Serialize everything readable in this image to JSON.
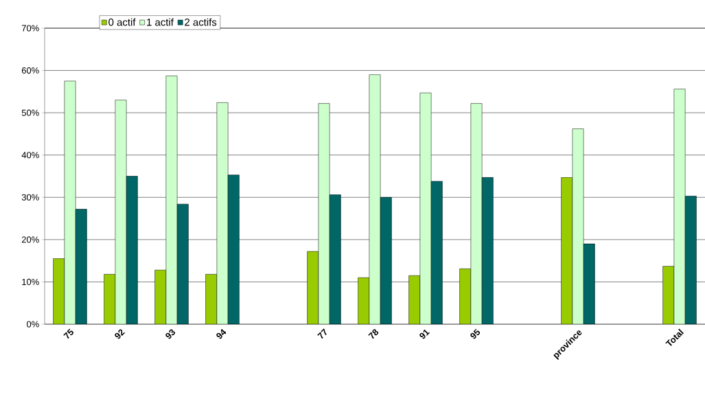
{
  "chart_data": {
    "type": "bar",
    "categories": [
      "75",
      "92",
      "93",
      "94",
      null,
      "77",
      "78",
      "91",
      "95",
      null,
      "province",
      null,
      "Total"
    ],
    "series": [
      {
        "name": "0 actif",
        "color": "#99cc00",
        "values": [
          15.5,
          11.8,
          12.8,
          11.8,
          null,
          17.2,
          11.0,
          11.5,
          13.1,
          null,
          34.7,
          null,
          13.7
        ]
      },
      {
        "name": "1 actif",
        "color": "#ccffcc",
        "values": [
          57.5,
          53.0,
          58.7,
          52.4,
          null,
          52.2,
          59.0,
          54.7,
          52.2,
          null,
          46.2,
          null,
          55.6
        ]
      },
      {
        "name": "2 actifs",
        "color": "#006666",
        "values": [
          27.2,
          35.0,
          28.4,
          35.3,
          null,
          30.6,
          30.0,
          33.8,
          34.7,
          null,
          19.0,
          null,
          30.3
        ]
      }
    ],
    "ylim": [
      0,
      70
    ],
    "yticks": [
      {
        "value": 0,
        "label": "0%"
      },
      {
        "value": 10,
        "label": "10%"
      },
      {
        "value": 20,
        "label": "20%"
      },
      {
        "value": 30,
        "label": "30%"
      },
      {
        "value": 40,
        "label": "40%"
      },
      {
        "value": 50,
        "label": "50%"
      },
      {
        "value": 60,
        "label": "60%"
      },
      {
        "value": 70,
        "label": "70%"
      }
    ],
    "grid": "y",
    "legend": "top left"
  }
}
